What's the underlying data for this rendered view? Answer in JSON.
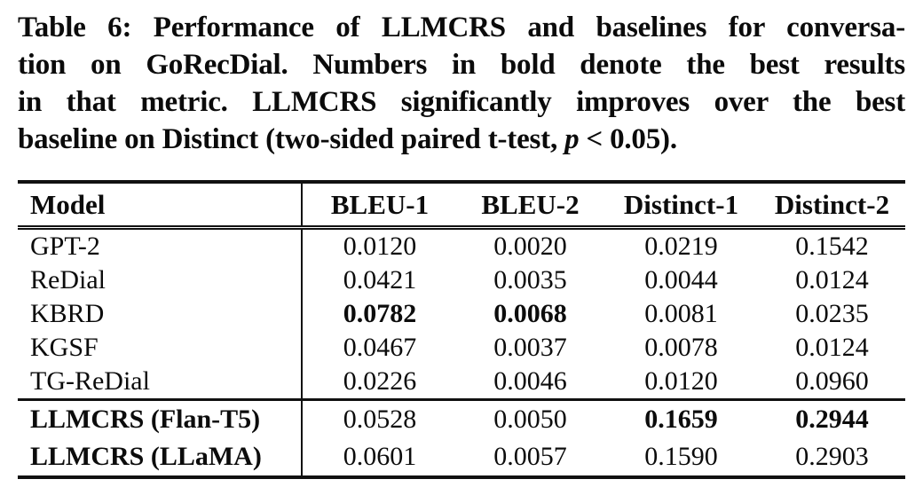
{
  "caption": {
    "line1": "Table 6: Performance of LLMCRS and baselines for conversa-",
    "line2": "tion on GoRecDial. Numbers in bold denote the best results",
    "line3": "in that metric. LLMCRS significantly improves over the best",
    "line4_prefix": "baseline on Distinct (two-sided paired t-test, ",
    "line4_italic": "p",
    "line4_suffix": " < 0.05)."
  },
  "table": {
    "header": {
      "model": "Model",
      "cols": [
        "BLEU-1",
        "BLEU-2",
        "Distinct-1",
        "Distinct-2"
      ]
    },
    "baselines": [
      {
        "model": "GPT-2",
        "v1": "0.0120",
        "v2": "0.0020",
        "v3": "0.0219",
        "v4": "0.1542"
      },
      {
        "model": "ReDial",
        "v1": "0.0421",
        "v2": "0.0035",
        "v3": "0.0044",
        "v4": "0.0124"
      },
      {
        "model": "KBRD",
        "v1": "0.0782",
        "v2": "0.0068",
        "v3": "0.0081",
        "v4": "0.0235"
      },
      {
        "model": "KGSF",
        "v1": "0.0467",
        "v2": "0.0037",
        "v3": "0.0078",
        "v4": "0.0124"
      },
      {
        "model": "TG-ReDial",
        "v1": "0.0226",
        "v2": "0.0046",
        "v3": "0.0120",
        "v4": "0.0960"
      }
    ],
    "llmcrs": [
      {
        "model": "LLMCRS (Flan-T5)",
        "v1": "0.0528",
        "v2": "0.0050",
        "v3": "0.1659",
        "v4": "0.2944"
      },
      {
        "model": "LLMCRS (LLaMA)",
        "v1": "0.0601",
        "v2": "0.0057",
        "v3": "0.1590",
        "v4": "0.2903"
      }
    ]
  },
  "chart_data": {
    "type": "table",
    "title": "Table 6: Performance of LLMCRS and baselines for conversation on GoRecDial",
    "columns": [
      "Model",
      "BLEU-1",
      "BLEU-2",
      "Distinct-1",
      "Distinct-2"
    ],
    "rows": [
      [
        "GPT-2",
        0.012,
        0.002,
        0.0219,
        0.1542
      ],
      [
        "ReDial",
        0.0421,
        0.0035,
        0.0044,
        0.0124
      ],
      [
        "KBRD",
        0.0782,
        0.0068,
        0.0081,
        0.0235
      ],
      [
        "KGSF",
        0.0467,
        0.0037,
        0.0078,
        0.0124
      ],
      [
        "TG-ReDial",
        0.0226,
        0.0046,
        0.012,
        0.096
      ],
      [
        "LLMCRS (Flan-T5)",
        0.0528,
        0.005,
        0.1659,
        0.2944
      ],
      [
        "LLMCRS (LLaMA)",
        0.0601,
        0.0057,
        0.159,
        0.2903
      ]
    ],
    "bold_cells": [
      [
        "KBRD",
        "BLEU-1"
      ],
      [
        "KBRD",
        "BLEU-2"
      ],
      [
        "LLMCRS (Flan-T5)",
        "Distinct-1"
      ],
      [
        "LLMCRS (Flan-T5)",
        "Distinct-2"
      ]
    ]
  }
}
